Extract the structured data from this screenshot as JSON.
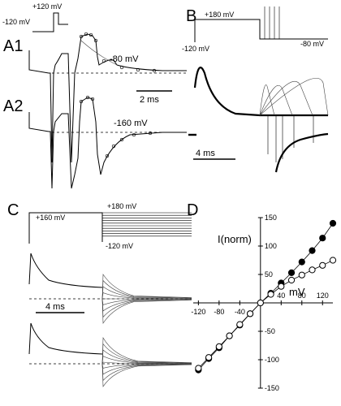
{
  "panels": {
    "a1": "A1",
    "a2": "A2",
    "b": "B",
    "c": "C",
    "d": "D"
  },
  "panel_a": {
    "protocol_high": "+120 mV",
    "protocol_low": "-120 mV",
    "trace1_label": "-80 mV",
    "trace2_label": "-160 mV",
    "scale_label": "2 ms"
  },
  "panel_b": {
    "protocol_high": "+180 mV",
    "protocol_low": "-120 mV",
    "protocol_tail": "-80 mV",
    "scale_label": "4 ms"
  },
  "panel_c": {
    "protocol_left": "+160 mV",
    "protocol_right": "+180 mV",
    "protocol_low": "-120 mV",
    "scale_label": "4 ms"
  },
  "chart_data": {
    "type": "scatter",
    "ylabel": "I(norm)",
    "xlabel": "mV",
    "xlim": [
      -130,
      140
    ],
    "ylim": [
      -150,
      150
    ],
    "x_ticks": [
      -120,
      -80,
      -40,
      40,
      80,
      120
    ],
    "y_ticks": [
      150,
      100,
      50,
      -50,
      -100,
      -150
    ],
    "series": [
      {
        "marker": "filled",
        "x": [
          -120,
          -100,
          -80,
          -60,
          -40,
          -20,
          0,
          20,
          40,
          60,
          80,
          100,
          120,
          140
        ],
        "y": [
          -118,
          -98,
          -79,
          -58,
          -39,
          -19,
          0,
          17,
          35,
          53,
          72,
          92,
          114,
          140
        ]
      },
      {
        "marker": "open",
        "x": [
          -120,
          -100,
          -80,
          -60,
          -40,
          -20,
          0,
          20,
          40,
          60,
          80,
          100,
          120,
          140
        ],
        "y": [
          -115,
          -96,
          -77,
          -58,
          -38,
          -19,
          0,
          15,
          29,
          40,
          49,
          58,
          66,
          75
        ]
      }
    ]
  }
}
